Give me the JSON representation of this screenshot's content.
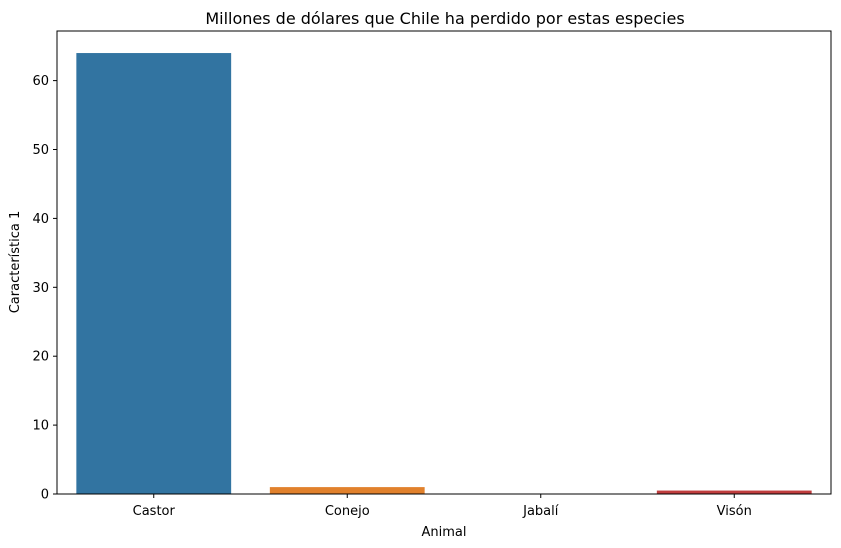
{
  "chart_data": {
    "type": "bar",
    "title": "Millones de dólares que Chile ha perdido por estas especies",
    "xlabel": "Animal",
    "ylabel": "Característica 1",
    "categories": [
      "Castor",
      "Conejo",
      "Jabalí",
      "Visón"
    ],
    "values": [
      64,
      1,
      0,
      0.5
    ],
    "colors": [
      "#3274a1",
      "#e1812c",
      "#3a923a",
      "#c03d3e"
    ],
    "ylim": [
      0,
      67.2
    ],
    "yticks": [
      0,
      10,
      20,
      30,
      40,
      50,
      60
    ],
    "grid": false,
    "legend": "none"
  }
}
